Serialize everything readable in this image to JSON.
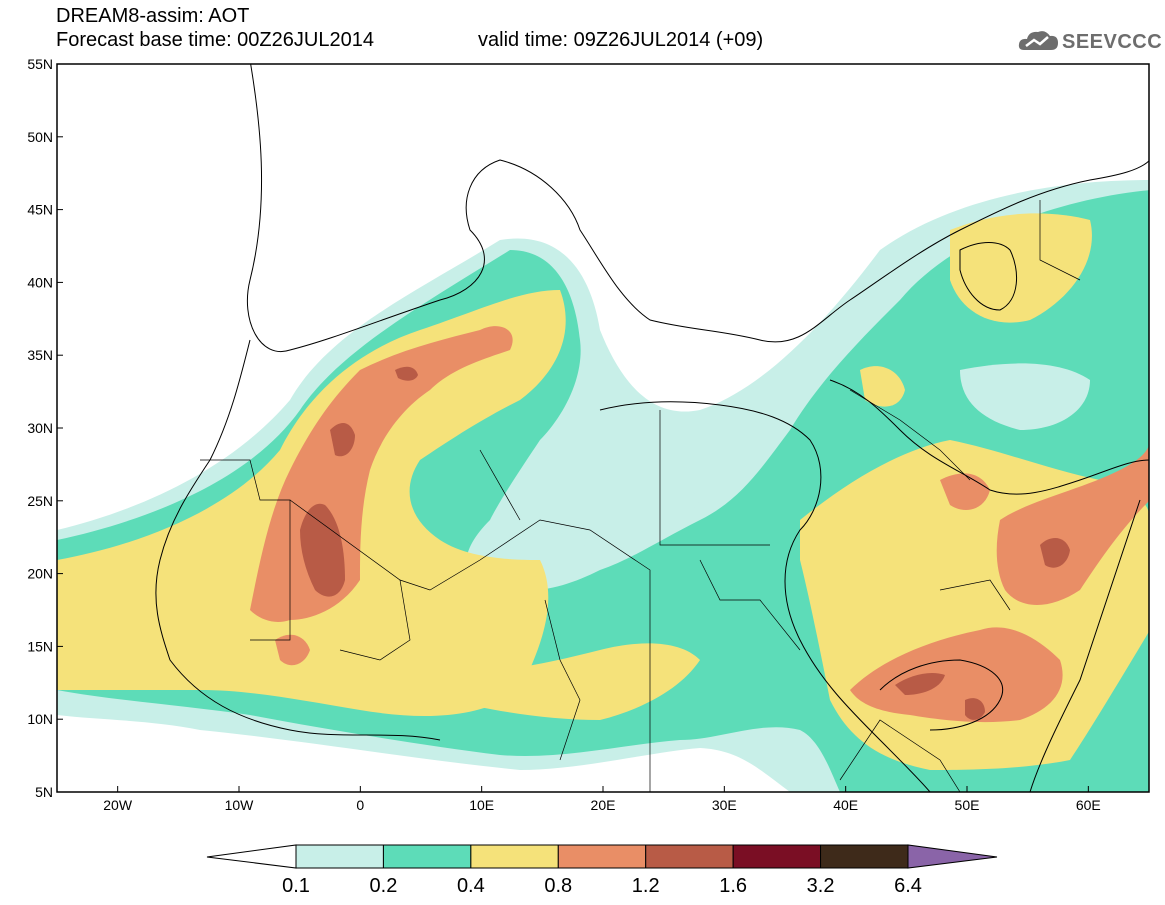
{
  "header": {
    "title": "DREAM8-assim: AOT",
    "base_time": "Forecast base time: 00Z26JUL2014",
    "valid_time": "valid time: 09Z26JUL2014 (+09)",
    "logo_text": "SEEVCCC"
  },
  "map": {
    "lat_labels": [
      "55N",
      "50N",
      "45N",
      "40N",
      "35N",
      "30N",
      "25N",
      "20N",
      "15N",
      "10N",
      "5N"
    ],
    "lon_labels": [
      "20W",
      "10W",
      "0",
      "10E",
      "20E",
      "30E",
      "40E",
      "50E",
      "60E"
    ],
    "extent": {
      "lon": [
        -25,
        65
      ],
      "lat": [
        5,
        55
      ]
    }
  },
  "colorbar": {
    "labels": [
      "0.1",
      "0.2",
      "0.4",
      "0.8",
      "1.2",
      "1.6",
      "3.2",
      "6.4"
    ],
    "colors": [
      "#c8efe8",
      "#5ddcb8",
      "#f5e27a",
      "#e98e66",
      "#b85b46",
      "#7a0e24",
      "#3e2a1a"
    ],
    "under_color": "#ffffff",
    "over_color": "#8a64a8"
  },
  "palette": {
    "c1": "#c8efe8",
    "c2": "#5ddcb8",
    "c3": "#f5e27a",
    "c4": "#e98e66",
    "c5": "#b85b46"
  }
}
